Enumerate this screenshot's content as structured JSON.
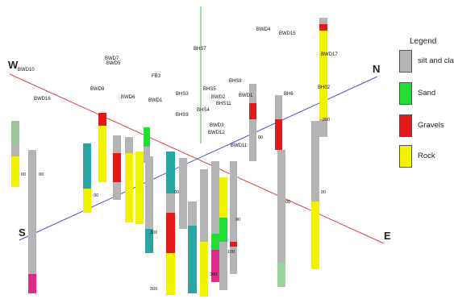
{
  "compass": {
    "west": "W",
    "north": "N",
    "south": "S",
    "east": "E"
  },
  "legend": {
    "title": "Legend",
    "items": [
      {
        "label": "silt and clay",
        "color": "#b4b4b4"
      },
      {
        "label": "Sand",
        "color": "#22dd33"
      },
      {
        "label": "Gravels",
        "color": "#e31919"
      },
      {
        "label": "Rock",
        "color": "#f2f200"
      }
    ]
  },
  "colors": {
    "silt": "#b4b4b4",
    "sand": "#22dd33",
    "gravel": "#e31919",
    "rock": "#f2f200",
    "teal": "#2aa5a5",
    "magenta": "#e02a8a",
    "axis_we": "#d94444",
    "axis_ns": "#4a55d6",
    "vertical": "#3fbf3f"
  },
  "borehole_labels": [
    "BWD4",
    "BWD15",
    "BHS7",
    "BWD17",
    "BWD7",
    "BWD10",
    "BWD5",
    "FB3",
    "BHS8",
    "BWD8",
    "BH02",
    "BWD1",
    "BWD6",
    "BWD1",
    "BHS3",
    "BHS5",
    "BHS4",
    "BH6",
    "BHS9",
    "BWD3",
    "BHS11",
    "BWD12",
    "BWD11",
    "BWD16",
    "BWD2"
  ],
  "depth_labels": [
    "00",
    "00",
    "00",
    "00",
    "00",
    "300",
    "00",
    "300",
    "100",
    "00",
    "200",
    "300",
    "00"
  ]
}
